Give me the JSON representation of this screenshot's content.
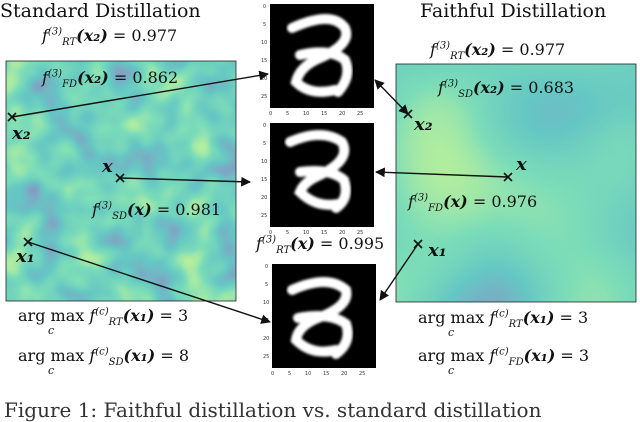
{
  "titles": {
    "left": "Standard Distillation",
    "right": "Faithful Distillation"
  },
  "left_panel": {
    "eq_rt_x2": {
      "func": "f",
      "sup": "(3)",
      "sub": "RT",
      "arg": "(x₂)",
      "value": "= 0.977"
    },
    "eq_fd_x2": {
      "func": "f",
      "sup": "(3)",
      "sub": "FD",
      "arg": "(x₂)",
      "value": "= 0.862"
    },
    "eq_sd_x": {
      "func": "f",
      "sup": "(3)",
      "sub": "SD",
      "arg": "(x)",
      "value": "= 0.981"
    },
    "point_x2": "x₂",
    "point_x": "x",
    "point_x1": "x₁",
    "argmax_rt": {
      "op": "arg max",
      "under": "c",
      "func": "f",
      "sup": "(c)",
      "sub": "RT",
      "arg": "(x₁)",
      "value": "= 3"
    },
    "argmax_sd": {
      "op": "arg max",
      "under": "c",
      "func": "f",
      "sup": "(c)",
      "sub": "SD",
      "arg": "(x₁)",
      "value": "= 8"
    }
  },
  "right_panel": {
    "eq_rt_x2": {
      "func": "f",
      "sup": "(3)",
      "sub": "RT",
      "arg": "(x₂)",
      "value": "= 0.977"
    },
    "eq_sd_x2": {
      "func": "f",
      "sup": "(3)",
      "sub": "SD",
      "arg": "(x₂)",
      "value": "= 0.683"
    },
    "eq_fd_x": {
      "func": "f",
      "sup": "(3)",
      "sub": "FD",
      "arg": "(x)",
      "value": "= 0.976"
    },
    "point_x2": "x₂",
    "point_x": "x",
    "point_x1": "x₁",
    "argmax_rt": {
      "op": "arg max",
      "under": "c",
      "func": "f",
      "sup": "(c)",
      "sub": "RT",
      "arg": "(x₁)",
      "value": "= 3"
    },
    "argmax_fd": {
      "op": "arg max",
      "under": "c",
      "func": "f",
      "sup": "(c)",
      "sub": "FD",
      "arg": "(x₁)",
      "value": "= 3"
    }
  },
  "center": {
    "eq_rt_x": {
      "func": "f",
      "sup": "(3)",
      "sub": "RT",
      "arg": "(x)",
      "value": "= 0.995"
    },
    "tick_labels": [
      "0",
      "5",
      "10",
      "15",
      "20",
      "25"
    ]
  },
  "caption": "Figure 1: Faithful distillation vs. standard distillation"
}
